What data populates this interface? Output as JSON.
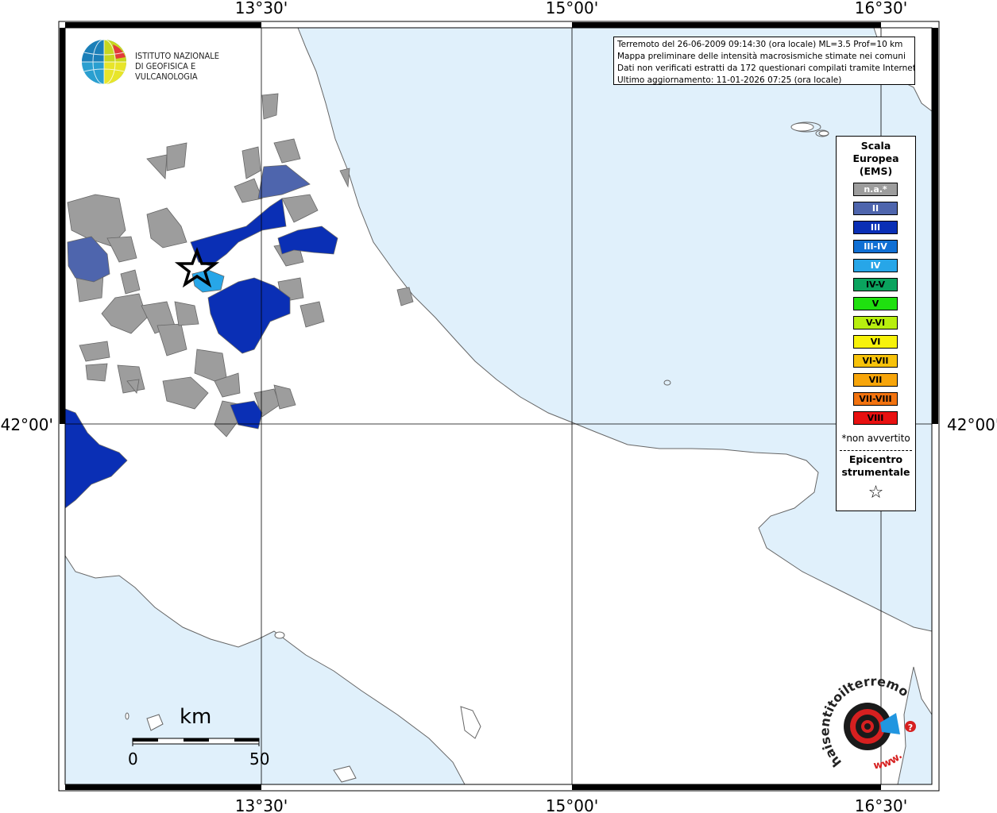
{
  "map": {
    "lat_labels": {
      "top": [
        "13°30'",
        "15°00'",
        "16°30'"
      ],
      "bottom": [
        "13°30'",
        "15°00'",
        "16°30'"
      ]
    },
    "lon_label": "42°00'",
    "colors": {
      "sea": "#e0f0fb",
      "land": "#ffffff",
      "coast": "#666666",
      "grid": "#000000"
    }
  },
  "logo": {
    "line1": "ISTITUTO NAZIONALE",
    "line2": "DI GEOFISICA E VULCANOLOGIA"
  },
  "info": {
    "line1": "Terremoto del 26-06-2009 09:14:30 (ora locale) ML=3.5 Prof=10 km",
    "line2": "Mappa preliminare delle intensità macrosismiche stimate nei comuni",
    "line3": "Dati non verificati estratti da 172 questionari compilati tramite Internet.",
    "line4": "Ultimo aggiornamento: 11-01-2026 07:25 (ora locale)"
  },
  "legend": {
    "title1": "Scala",
    "title2": "Europea",
    "title3": "(EMS)",
    "items": [
      {
        "label": "n.a.*",
        "color": "#9d9d9d",
        "text": "#ffffff"
      },
      {
        "label": "II",
        "color": "#4e65ad",
        "text": "#ffffff"
      },
      {
        "label": "III",
        "color": "#0a2fb5",
        "text": "#ffffff"
      },
      {
        "label": "III-IV",
        "color": "#0f6fd4",
        "text": "#ffffff"
      },
      {
        "label": "IV",
        "color": "#27a6e8",
        "text": "#ffffff"
      },
      {
        "label": "IV-V",
        "color": "#0aa35e",
        "text": "#000000"
      },
      {
        "label": "V",
        "color": "#1fe00f",
        "text": "#000000"
      },
      {
        "label": "V-VI",
        "color": "#b8ef0f",
        "text": "#000000"
      },
      {
        "label": "VI",
        "color": "#f7f20a",
        "text": "#000000"
      },
      {
        "label": "VI-VII",
        "color": "#f7c20a",
        "text": "#000000"
      },
      {
        "label": "VII",
        "color": "#f7a50a",
        "text": "#000000"
      },
      {
        "label": "VII-VIII",
        "color": "#f2730f",
        "text": "#000000"
      },
      {
        "label": "VIII",
        "color": "#e81010",
        "text": "#000000"
      }
    ],
    "note": "*non avvertito",
    "epi1": "Epicentro",
    "epi2": "strumentale",
    "star": "☆"
  },
  "scale": {
    "unit": "km",
    "min": "0",
    "max": "50"
  },
  "brand": {
    "name": "haisentitoilterremoto.it",
    "prefix": "www.",
    "question": "?"
  }
}
